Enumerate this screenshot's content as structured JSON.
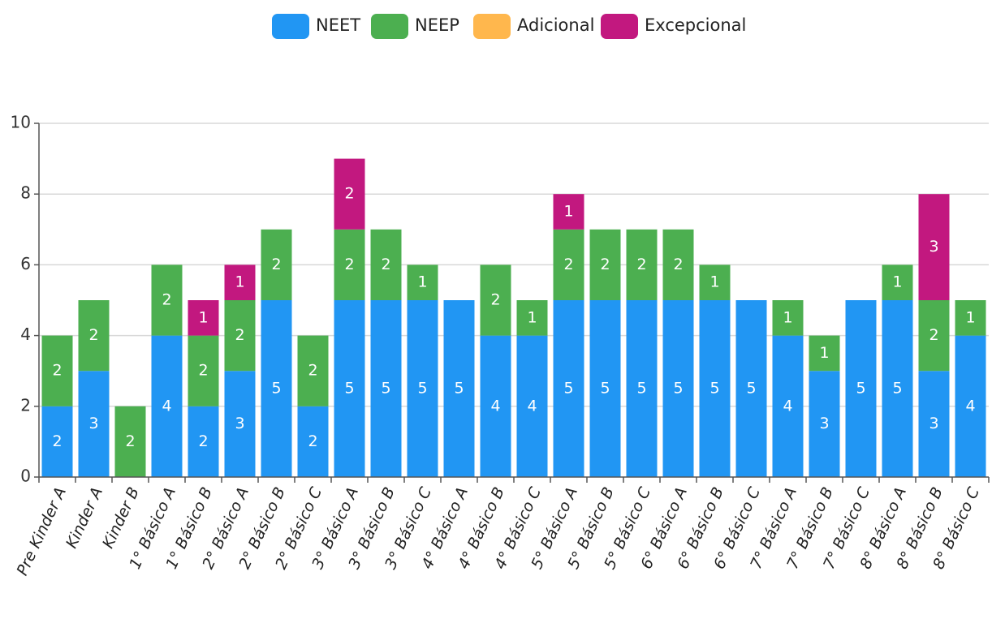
{
  "chart_data": {
    "type": "stacked_bar",
    "categories": [
      "Pre Kinder A",
      "Kinder A",
      "Kinder B",
      "1° Básico A",
      "1° Básico B",
      "2° Básico A",
      "2° Básico B",
      "2° Básico C",
      "3° Básico A",
      "3° Básico B",
      "3° Básico C",
      "4° Básico A",
      "4° Básico B",
      "4° Básico C",
      "5° Básico A",
      "5° Básico B",
      "5° Básico C",
      "6° Básico A",
      "6° Básico B",
      "6° Básico C",
      "7° Básico A",
      "7° Básico B",
      "7° Básico C",
      "8° Básico A",
      "8° Básico B",
      "8° Básico C"
    ],
    "series": [
      {
        "name": "NEET",
        "color": "#2196f3",
        "values": [
          2,
          3,
          null,
          4,
          2,
          3,
          5,
          2,
          5,
          5,
          5,
          5,
          4,
          4,
          5,
          5,
          5,
          5,
          5,
          5,
          4,
          3,
          5,
          5,
          3,
          4
        ]
      },
      {
        "name": "NEEP",
        "color": "#4caf50",
        "values": [
          2,
          2,
          2,
          2,
          2,
          2,
          2,
          2,
          2,
          2,
          1,
          null,
          2,
          1,
          2,
          2,
          2,
          2,
          1,
          null,
          1,
          1,
          null,
          1,
          2,
          1
        ]
      },
      {
        "name": "Adicional",
        "color": "#ffb74d",
        "values": [
          null,
          null,
          null,
          null,
          null,
          null,
          null,
          null,
          null,
          null,
          null,
          null,
          null,
          null,
          null,
          null,
          null,
          null,
          null,
          null,
          null,
          null,
          null,
          null,
          null,
          null
        ]
      },
      {
        "name": "Excepcional",
        "color": "#c2187f",
        "values": [
          null,
          null,
          null,
          null,
          1,
          1,
          null,
          null,
          2,
          null,
          null,
          null,
          null,
          null,
          1,
          null,
          null,
          null,
          null,
          null,
          null,
          null,
          null,
          null,
          3,
          null
        ]
      }
    ],
    "ylim": [
      0,
      10
    ],
    "yticks": [
      0,
      2,
      4,
      6,
      8,
      10
    ],
    "grid": true,
    "legend": "top"
  }
}
